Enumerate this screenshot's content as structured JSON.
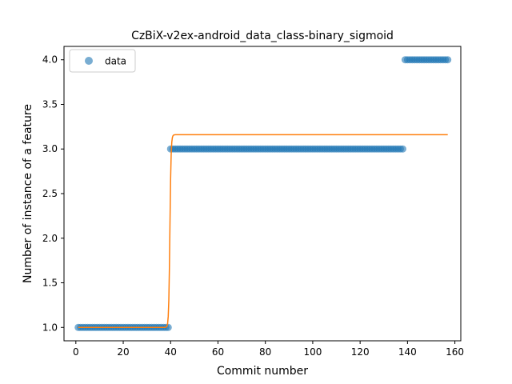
{
  "chart_data": {
    "type": "scatter",
    "title": "CzBiX-v2ex-android_data_class-binary_sigmoid",
    "xlabel": "Commit number",
    "ylabel": "Number of instance of a feature",
    "xlim": [
      -5,
      162.5
    ],
    "ylim": [
      0.85,
      4.15
    ],
    "xticks": [
      0,
      20,
      40,
      60,
      80,
      100,
      120,
      140,
      160
    ],
    "yticks": [
      1.0,
      1.5,
      2.0,
      2.5,
      3.0,
      3.5,
      4.0
    ],
    "xtick_labels": [
      "0",
      "20",
      "40",
      "60",
      "80",
      "100",
      "120",
      "140",
      "160"
    ],
    "ytick_labels": [
      "1.0",
      "1.5",
      "2.0",
      "2.5",
      "3.0",
      "3.5",
      "4.0"
    ],
    "grid": false,
    "legend_position": "top-left",
    "series": [
      {
        "name": "data",
        "kind": "points",
        "color": "#1f77b4",
        "segments": [
          {
            "x_start": 1,
            "x_end": 39,
            "y": 1
          },
          {
            "x_start": 40,
            "x_end": 138,
            "y": 3
          },
          {
            "x_start": 139,
            "x_end": 157,
            "y": 4
          }
        ]
      },
      {
        "kind": "sigmoid-fit",
        "color": "#ff7f0e",
        "x_start": 1,
        "x_end": 157,
        "low": 1.0,
        "high": 3.16,
        "midpoint": 39.7,
        "steepness": 4.0
      }
    ]
  }
}
